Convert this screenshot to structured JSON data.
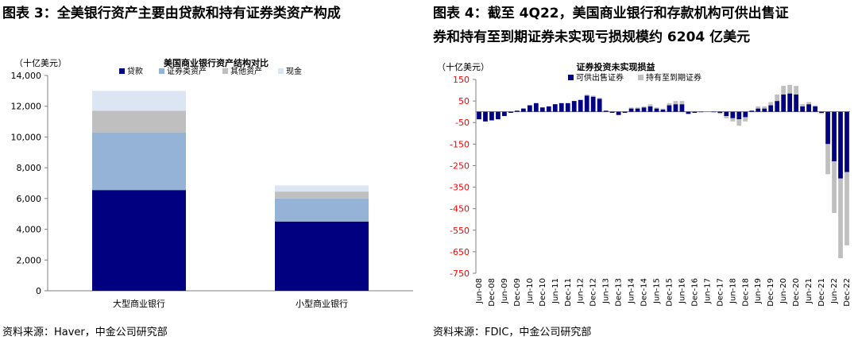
{
  "left": {
    "figure_title": "图表 3：全美银行资产主要由贷款和持有证券类资产构成",
    "source": "资料来源：Haver，中金公司研究部",
    "chart_data": {
      "type": "stacked-bar",
      "title": "美国商业银行资产结构对比",
      "unit_label": "（十亿美元）",
      "categories": [
        "大型商业银行",
        "小型商业银行"
      ],
      "series": [
        {
          "name": "贷款",
          "color": "#000080",
          "values": [
            6550,
            4500
          ]
        },
        {
          "name": "证券类资产",
          "color": "#95b3d7",
          "values": [
            3750,
            1500
          ]
        },
        {
          "name": "其他资产",
          "color": "#bfbfbf",
          "values": [
            1400,
            450
          ]
        },
        {
          "name": "现金",
          "color": "#dce6f2",
          "values": [
            1300,
            400
          ]
        }
      ],
      "ylim": [
        0,
        14000
      ],
      "yticks": [
        0,
        2000,
        4000,
        6000,
        8000,
        10000,
        12000,
        14000
      ],
      "ytick_labels": [
        "0",
        "2,000",
        "4,000",
        "6,000",
        "8,000",
        "10,000",
        "12,000",
        "14,000"
      ],
      "legend_position": "top"
    }
  },
  "right": {
    "figure_title_line1": "图表 4：截至 4Q22，美国商业银行和存款机构可供出售证",
    "figure_title_line2": "券和持有至到期证券未实现亏损规模约 6204 亿美元",
    "source": "资料来源：FDIC，中金公司研究部",
    "chart_data": {
      "type": "stacked-bar",
      "title": "证券投资未实现损益",
      "unit_label": "（十亿美元）",
      "x": [
        "Jun-08",
        "Sep-08",
        "Dec-08",
        "Mar-09",
        "Jun-09",
        "Sep-09",
        "Dec-09",
        "Mar-10",
        "Jun-10",
        "Sep-10",
        "Dec-10",
        "Mar-11",
        "Jun-11",
        "Sep-11",
        "Dec-11",
        "Mar-12",
        "Jun-12",
        "Sep-12",
        "Dec-12",
        "Mar-13",
        "Jun-13",
        "Sep-13",
        "Dec-13",
        "Mar-14",
        "Jun-14",
        "Sep-14",
        "Dec-14",
        "Mar-15",
        "Jun-15",
        "Sep-15",
        "Dec-15",
        "Mar-16",
        "Jun-16",
        "Sep-16",
        "Dec-16",
        "Mar-17",
        "Jun-17",
        "Sep-17",
        "Dec-17",
        "Mar-18",
        "Jun-18",
        "Sep-18",
        "Dec-18",
        "Mar-19",
        "Jun-19",
        "Sep-19",
        "Dec-19",
        "Mar-20",
        "Jun-20",
        "Sep-20",
        "Dec-20",
        "Mar-21",
        "Jun-21",
        "Sep-21",
        "Dec-21",
        "Mar-22",
        "Jun-22",
        "Sep-22",
        "Dec-22"
      ],
      "x_tick_labels": [
        "Jun-08",
        "Dec-08",
        "Jun-09",
        "Dec-09",
        "Jun-10",
        "Dec-10",
        "Jun-11",
        "Dec-11",
        "Jun-12",
        "Dec-12",
        "Jun-13",
        "Dec-13",
        "Jun-14",
        "Dec-14",
        "Jun-15",
        "Dec-15",
        "Jun-16",
        "Dec-16",
        "Jun-17",
        "Dec-17",
        "Jun-18",
        "Dec-18",
        "Jun-19",
        "Dec-19",
        "Jun-20",
        "Dec-20",
        "Jun-21",
        "Dec-21",
        "Jun-22",
        "Dec-22"
      ],
      "series": [
        {
          "name": "可供出售证券",
          "color": "#000080",
          "values": [
            -35,
            -45,
            -40,
            -35,
            -20,
            -5,
            5,
            15,
            30,
            40,
            20,
            25,
            35,
            40,
            40,
            50,
            55,
            75,
            70,
            60,
            5,
            -5,
            -15,
            -5,
            15,
            15,
            20,
            25,
            15,
            10,
            30,
            35,
            35,
            -10,
            -5,
            -2,
            0,
            -2,
            -5,
            -20,
            -30,
            -35,
            -25,
            5,
            15,
            15,
            30,
            50,
            80,
            85,
            80,
            25,
            35,
            25,
            -5,
            -150,
            -230,
            -310,
            -280
          ],
          "hatch": []
        },
        {
          "name": "持有至到期证券",
          "color": "#bfbfbf",
          "values": [
            0,
            0,
            0,
            0,
            0,
            0,
            0,
            0,
            0,
            0,
            0,
            0,
            0,
            0,
            0,
            0,
            0,
            5,
            5,
            5,
            0,
            0,
            0,
            0,
            5,
            5,
            5,
            10,
            5,
            5,
            10,
            15,
            15,
            0,
            0,
            0,
            0,
            0,
            -5,
            -10,
            -15,
            -30,
            -20,
            0,
            10,
            10,
            15,
            30,
            40,
            40,
            40,
            10,
            10,
            5,
            -5,
            -140,
            -240,
            -370,
            -340
          ]
        }
      ],
      "ylim": [
        -750,
        150
      ],
      "yticks": [
        150,
        50,
        -50,
        -150,
        -250,
        -350,
        -450,
        -550,
        -650,
        -750
      ],
      "legend_position": "top"
    }
  }
}
